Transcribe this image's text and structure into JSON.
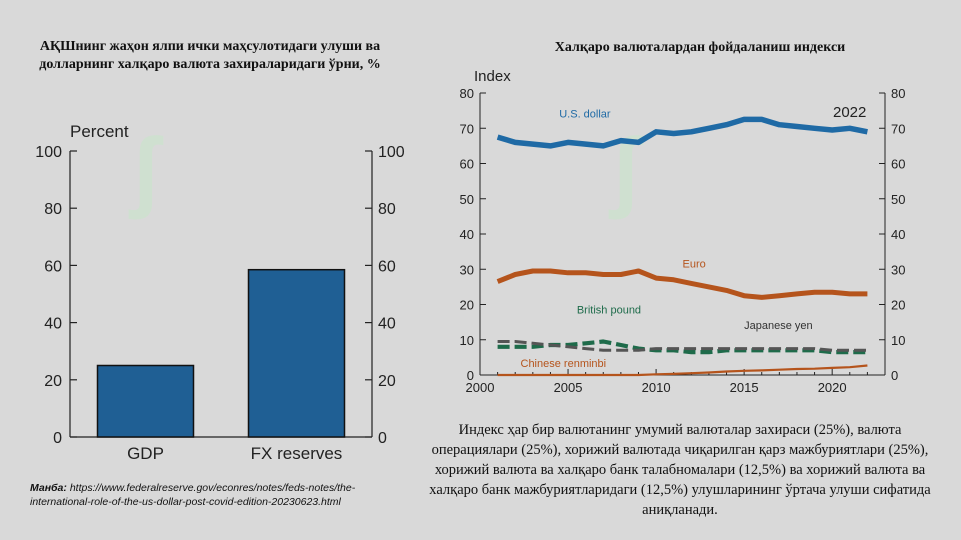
{
  "left_chart_title": "АҚШнинг жаҳон ялпи ички маҳсулотидаги улуши ва долларнинг халқаро валюта захираларидаги ўрни, %",
  "right_chart_title": "Халқаро валюталардан фойдаланиш индекси",
  "source_label": "Манба:",
  "source_url": "https://www.federalreserve.gov/econres/notes/feds-notes/the-international-role-of-the-us-dollar-post-covid-edition-20230623.html",
  "description": "Индекс ҳар бир валютанинг умумий валюталар захираси (25%), валюта операциялари (25%), хорижий валютада чиқарилган қарз мажбуриятлари (25%), хорижий валюта ва халқаро банк талабномалари (12,5%) ва хорижий валюта ва халқаро банк мажбуриятларидаги (12,5%) улушларининг ўртача улуши сифатида аниқланади.",
  "chart_data": [
    {
      "type": "bar",
      "ylabel": "Percent",
      "ylim": [
        0,
        100
      ],
      "yticks": [
        0,
        20,
        40,
        60,
        80,
        100
      ],
      "categories": [
        "GDP",
        "FX reserves"
      ],
      "values": [
        25,
        58.5
      ],
      "bar_color": "#1f5f94"
    },
    {
      "type": "line",
      "ylabel": "Index",
      "ylim": [
        0,
        80
      ],
      "yticks": [
        0,
        10,
        20,
        30,
        40,
        50,
        60,
        70,
        80
      ],
      "xlim": [
        2000,
        2023
      ],
      "xticks": [
        2000,
        2005,
        2010,
        2015,
        2020
      ],
      "annotation": "2022",
      "series": [
        {
          "name": "U.S. dollar",
          "color": "#1f6aa5",
          "dash": "solid",
          "x": [
            2001,
            2002,
            2003,
            2004,
            2005,
            2006,
            2007,
            2008,
            2009,
            2010,
            2011,
            2012,
            2013,
            2014,
            2015,
            2016,
            2017,
            2018,
            2019,
            2020,
            2021,
            2022
          ],
          "y": [
            67.5,
            66,
            65.5,
            65,
            66,
            65.5,
            65,
            66.5,
            66,
            69,
            68.5,
            69,
            70,
            71,
            72.5,
            72.5,
            71,
            70.5,
            70,
            69.5,
            70,
            69
          ]
        },
        {
          "name": "Euro",
          "color": "#b5541c",
          "dash": "solid",
          "x": [
            2001,
            2002,
            2003,
            2004,
            2005,
            2006,
            2007,
            2008,
            2009,
            2010,
            2011,
            2012,
            2013,
            2014,
            2015,
            2016,
            2017,
            2018,
            2019,
            2020,
            2021,
            2022
          ],
          "y": [
            26.5,
            28.5,
            29.5,
            29.5,
            29,
            29,
            28.5,
            28.5,
            29.5,
            27.5,
            27,
            26,
            25,
            24,
            22.5,
            22,
            22.5,
            23,
            23.5,
            23.5,
            23,
            23
          ]
        },
        {
          "name": "British pound",
          "color": "#1e6b4a",
          "dash": "dashed",
          "x": [
            2001,
            2002,
            2003,
            2004,
            2005,
            2006,
            2007,
            2008,
            2009,
            2010,
            2011,
            2012,
            2013,
            2014,
            2015,
            2016,
            2017,
            2018,
            2019,
            2020,
            2021,
            2022
          ],
          "y": [
            8,
            8,
            8,
            8.5,
            8.5,
            9,
            9.5,
            8.5,
            7.5,
            7,
            7,
            6.5,
            6.5,
            7,
            7,
            7,
            7,
            7,
            7,
            6.5,
            6.5,
            6.5
          ]
        },
        {
          "name": "Japanese yen",
          "color": "#555555",
          "dash": "dashed",
          "x": [
            2001,
            2002,
            2003,
            2004,
            2005,
            2006,
            2007,
            2008,
            2009,
            2010,
            2011,
            2012,
            2013,
            2014,
            2015,
            2016,
            2017,
            2018,
            2019,
            2020,
            2021,
            2022
          ],
          "y": [
            9.5,
            9.5,
            9,
            8.5,
            8,
            7.5,
            7,
            7,
            7,
            7.5,
            7.5,
            7.5,
            7.5,
            7.5,
            7.5,
            7.5,
            7.5,
            7.5,
            7.5,
            7,
            7,
            7
          ]
        },
        {
          "name": "Chinese renminbi",
          "color": "#b5541c",
          "dash": "solid",
          "x": [
            2001,
            2002,
            2003,
            2004,
            2005,
            2006,
            2007,
            2008,
            2009,
            2010,
            2011,
            2012,
            2013,
            2014,
            2015,
            2016,
            2017,
            2018,
            2019,
            2020,
            2021,
            2022
          ],
          "y": [
            0,
            0,
            0,
            0,
            0,
            0,
            0,
            0,
            0,
            0.2,
            0.3,
            0.5,
            0.7,
            1,
            1.2,
            1.3,
            1.5,
            1.7,
            1.8,
            2,
            2.2,
            2.7
          ]
        }
      ]
    }
  ]
}
